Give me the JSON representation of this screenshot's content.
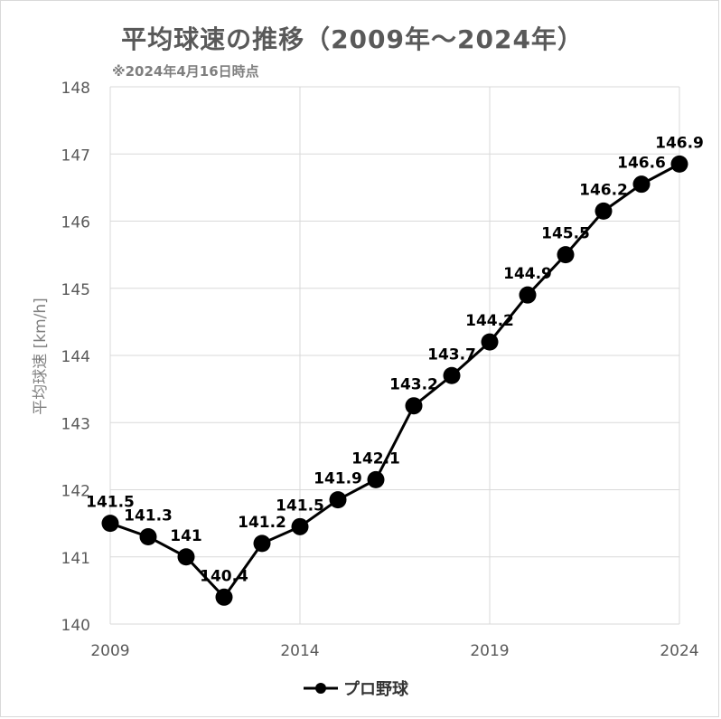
{
  "chart_data": {
    "type": "line",
    "title": "平均球速の推移（2009年～2024年）",
    "subtitle": "※2024年4月16日時点",
    "ylabel": "平均球速 [km/h]",
    "xlabel": "",
    "xlim": [
      2009,
      2024
    ],
    "ylim": [
      140,
      148
    ],
    "x_ticks": [
      "2009",
      "2014",
      "2019",
      "2024"
    ],
    "y_ticks": [
      "140",
      "141",
      "142",
      "143",
      "144",
      "145",
      "146",
      "147",
      "148"
    ],
    "grid": true,
    "legend_position": "bottom",
    "series": [
      {
        "name": "プロ野球",
        "color": "#000000",
        "x": [
          2009,
          2010,
          2011,
          2012,
          2013,
          2014,
          2015,
          2016,
          2017,
          2018,
          2019,
          2020,
          2021,
          2022,
          2023,
          2024
        ],
        "values": [
          141.5,
          141.3,
          141.0,
          140.4,
          141.2,
          141.45,
          141.85,
          142.15,
          143.25,
          143.7,
          144.2,
          144.9,
          145.5,
          146.15,
          146.55,
          146.85
        ],
        "labels": [
          "141.5",
          "141.3",
          "141",
          "140.4",
          "141.2",
          "141.5",
          "141.9",
          "142.1",
          "143.2",
          "143.7",
          "144.2",
          "144.9",
          "145.5",
          "146.2",
          "146.6",
          "146.9"
        ]
      }
    ]
  }
}
